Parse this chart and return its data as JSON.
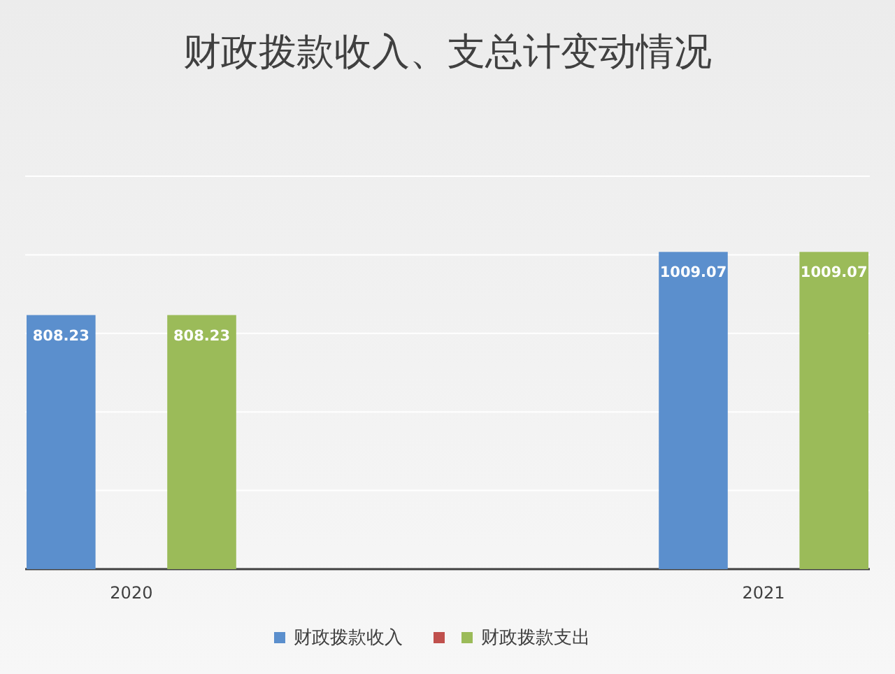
{
  "chart_data": {
    "type": "bar",
    "title": "财政拨款收入、支总计变动情况",
    "categories": [
      "2020",
      "2021"
    ],
    "series": [
      {
        "name": "财政拨款收入",
        "color": "#5b8fcd",
        "values": [
          808.23,
          1009.07
        ]
      },
      {
        "color": "#c0504d",
        "values": [
          null,
          null
        ]
      },
      {
        "name": "财政拨款支出",
        "color": "#9bbb59",
        "values": [
          808.23,
          1009.07
        ]
      }
    ],
    "ylim": [
      0,
      1250
    ],
    "yticks": [
      {
        "value": 0,
        "label": null
      },
      {
        "value": 250,
        "label": null
      },
      {
        "value": 500,
        "label": null
      },
      {
        "value": 750,
        "label": null
      },
      {
        "value": 1000,
        "label": null
      },
      {
        "value": 1250,
        "label": null
      }
    ],
    "tick_labels": "x",
    "grid": "y",
    "data_labels": true,
    "legend": "bottom"
  }
}
